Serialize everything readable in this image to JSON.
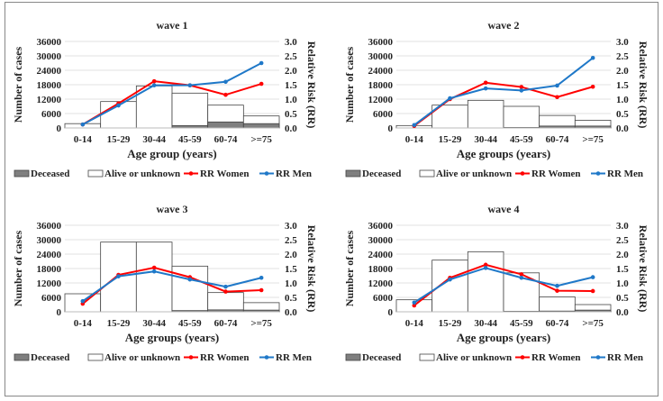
{
  "colors": {
    "deceased": "#7f7f7f",
    "alive": "#ffffff",
    "rr_women": "#ff0000",
    "rr_men": "#1f78c8",
    "grid": "#e0e0e0"
  },
  "chart_data": [
    {
      "type": "bar",
      "title": "wave 1",
      "categories": [
        "0-14",
        "15-29",
        "30-44",
        "45-59",
        "60-74",
        ">=75"
      ],
      "xlabel": "Age group (years)",
      "ylabel": "Number of cases",
      "y2label": "Relative Risk (RR)",
      "ylim": [
        0,
        36000
      ],
      "yticks": [
        "0",
        "6000",
        "12000",
        "18000",
        "24000",
        "30000",
        "36000"
      ],
      "y2lim": [
        0,
        3
      ],
      "y2ticks": [
        "0.0",
        "0.5",
        "1.0",
        "1.5",
        "2.0",
        "2.5",
        "3.0"
      ],
      "series": [
        {
          "name": "Deceased",
          "kind": "stacked-bar",
          "values": [
            0,
            0,
            0,
            1000,
            2500,
            1800
          ]
        },
        {
          "name": "Alive or unknown",
          "kind": "stacked-bar",
          "values": [
            1800,
            11000,
            17500,
            13500,
            7000,
            3200
          ]
        },
        {
          "name": "RR Women",
          "kind": "line",
          "axis": "right",
          "values": [
            0.12,
            0.85,
            1.62,
            1.48,
            1.15,
            1.53
          ]
        },
        {
          "name": "RR Men",
          "kind": "line",
          "axis": "right",
          "values": [
            0.12,
            0.78,
            1.48,
            1.48,
            1.6,
            2.25
          ]
        }
      ],
      "legend": "bottom"
    },
    {
      "type": "bar",
      "title": "wave 2",
      "categories": [
        "0-14",
        "15-29",
        "30-44",
        "45-59",
        "60-74",
        ">=75"
      ],
      "xlabel": "Age groups (years)",
      "ylabel": "Number of cases",
      "y2label": "Relative Risk (RR)",
      "ylim": [
        0,
        36000
      ],
      "yticks": [
        "0",
        "6000",
        "12000",
        "18000",
        "24000",
        "30000",
        "36000"
      ],
      "y2lim": [
        0,
        3
      ],
      "y2ticks": [
        "0.0",
        "0.5",
        "1.0",
        "1.5",
        "2.0",
        "2.5",
        "3.0"
      ],
      "series": [
        {
          "name": "Deceased",
          "kind": "stacked-bar",
          "values": [
            0,
            0,
            0,
            200,
            800,
            800
          ]
        },
        {
          "name": "Alive or unknown",
          "kind": "stacked-bar",
          "values": [
            1000,
            9500,
            11500,
            8800,
            4400,
            2400
          ]
        },
        {
          "name": "RR Women",
          "kind": "line",
          "axis": "right",
          "values": [
            0.07,
            1.0,
            1.57,
            1.42,
            1.07,
            1.43
          ]
        },
        {
          "name": "RR Men",
          "kind": "line",
          "axis": "right",
          "values": [
            0.1,
            1.03,
            1.37,
            1.3,
            1.47,
            2.43
          ]
        }
      ],
      "legend": "bottom"
    },
    {
      "type": "bar",
      "title": "wave 3",
      "categories": [
        "0-14",
        "15-29",
        "30-44",
        "45-59",
        "60-74",
        ">=75"
      ],
      "xlabel": "Age groups (years)",
      "ylabel": "Number of cases",
      "y2label": "Relative Risk (RR)",
      "ylim": [
        0,
        36000
      ],
      "yticks": [
        "0",
        "6000",
        "12000",
        "18000",
        "24000",
        "30000",
        "36000"
      ],
      "y2lim": [
        0,
        3
      ],
      "y2ticks": [
        "0.0",
        "0.5",
        "1.0",
        "1.5",
        "2.0",
        "2.5",
        "3.0"
      ],
      "series": [
        {
          "name": "Deceased",
          "kind": "stacked-bar",
          "values": [
            0,
            0,
            0,
            500,
            800,
            700
          ]
        },
        {
          "name": "Alive or unknown",
          "kind": "stacked-bar",
          "values": [
            7500,
            29000,
            29000,
            18500,
            7200,
            3100
          ]
        },
        {
          "name": "RR Women",
          "kind": "line",
          "axis": "right",
          "values": [
            0.28,
            1.28,
            1.53,
            1.2,
            0.7,
            0.75
          ]
        },
        {
          "name": "RR Men",
          "kind": "line",
          "axis": "right",
          "values": [
            0.37,
            1.23,
            1.4,
            1.12,
            0.87,
            1.18
          ]
        }
      ],
      "legend": "bottom"
    },
    {
      "type": "bar",
      "title": "wave 4",
      "categories": [
        "0-14",
        "15-29",
        "30-44",
        "45-59",
        "60-74",
        ">=75"
      ],
      "xlabel": "Age groups (years)",
      "ylabel": "Number of cases",
      "y2label": "Relative Risk (RR)",
      "ylim": [
        0,
        36000
      ],
      "yticks": [
        "0",
        "6000",
        "12000",
        "18000",
        "24000",
        "30000",
        "36000"
      ],
      "y2lim": [
        0,
        3
      ],
      "y2ticks": [
        "0.0",
        "0.5",
        "1.0",
        "1.5",
        "2.0",
        "2.5",
        "3.0"
      ],
      "series": [
        {
          "name": "Deceased",
          "kind": "stacked-bar",
          "values": [
            0,
            0,
            0,
            200,
            300,
            700
          ]
        },
        {
          "name": "Alive or unknown",
          "kind": "stacked-bar",
          "values": [
            5000,
            21500,
            25000,
            16000,
            5900,
            2300
          ]
        },
        {
          "name": "RR Women",
          "kind": "line",
          "axis": "right",
          "values": [
            0.22,
            1.18,
            1.63,
            1.3,
            0.73,
            0.72
          ]
        },
        {
          "name": "RR Men",
          "kind": "line",
          "axis": "right",
          "values": [
            0.32,
            1.12,
            1.52,
            1.18,
            0.9,
            1.2
          ]
        }
      ],
      "legend": "bottom"
    }
  ]
}
